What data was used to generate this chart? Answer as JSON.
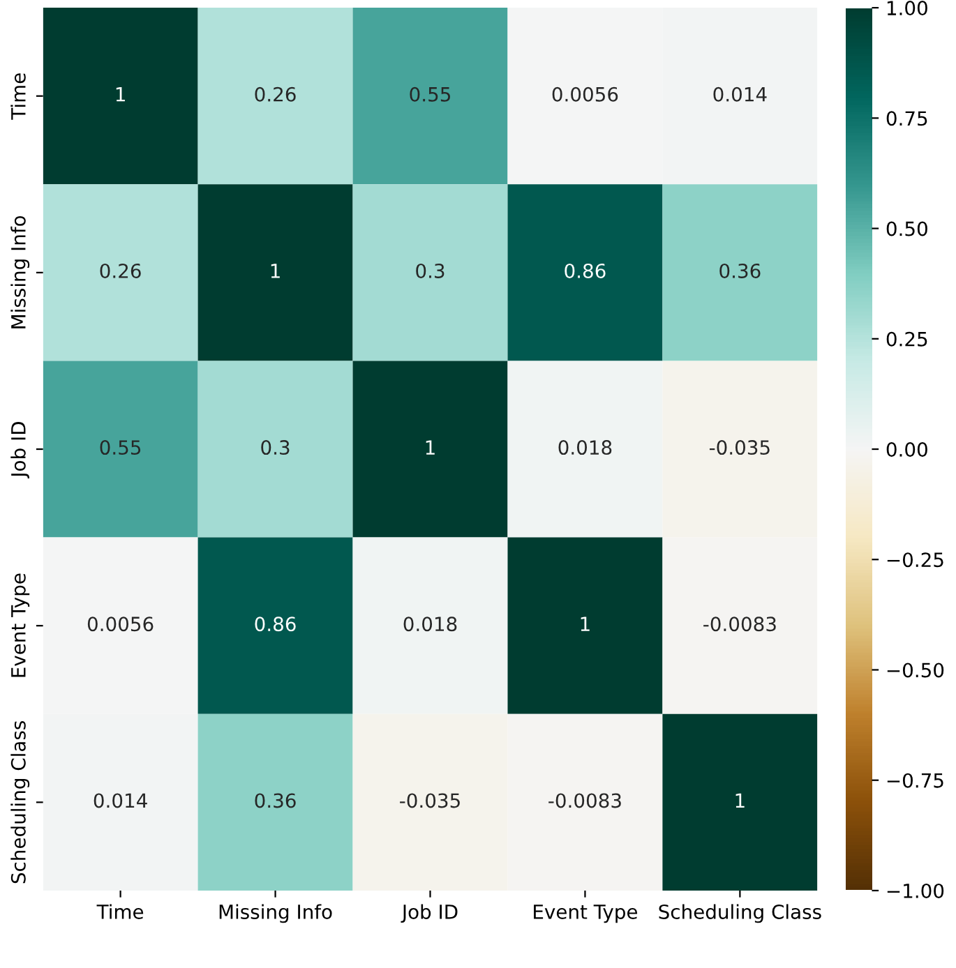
{
  "chart_data": {
    "type": "heatmap",
    "categories": [
      "Time",
      "Missing Info",
      "Job ID",
      "Event Type",
      "Scheduling Class"
    ],
    "y_categories": [
      "Time",
      "Missing Info",
      "Job ID",
      "Event Type",
      "Scheduling Class"
    ],
    "cells": [
      [
        1,
        0.26,
        0.55,
        0.0056,
        0.014
      ],
      [
        0.26,
        1,
        0.3,
        0.86,
        0.36
      ],
      [
        0.55,
        0.3,
        1,
        0.018,
        -0.035
      ],
      [
        0.0056,
        0.86,
        0.018,
        1,
        -0.0083
      ],
      [
        0.014,
        0.36,
        -0.035,
        -0.0083,
        1
      ]
    ],
    "data_labels": true,
    "clim": [
      -1,
      1
    ],
    "cticks": [
      {
        "value": -1,
        "label": "−1.00"
      },
      {
        "value": -0.75,
        "label": "−0.75"
      },
      {
        "value": -0.5,
        "label": "−0.50"
      },
      {
        "value": -0.25,
        "label": "−0.25"
      },
      {
        "value": 0,
        "label": "0.00"
      },
      {
        "value": 0.25,
        "label": "0.25"
      },
      {
        "value": 0.5,
        "label": "0.50"
      },
      {
        "value": 0.75,
        "label": "0.75"
      },
      {
        "value": 1,
        "label": "1.00"
      }
    ]
  }
}
